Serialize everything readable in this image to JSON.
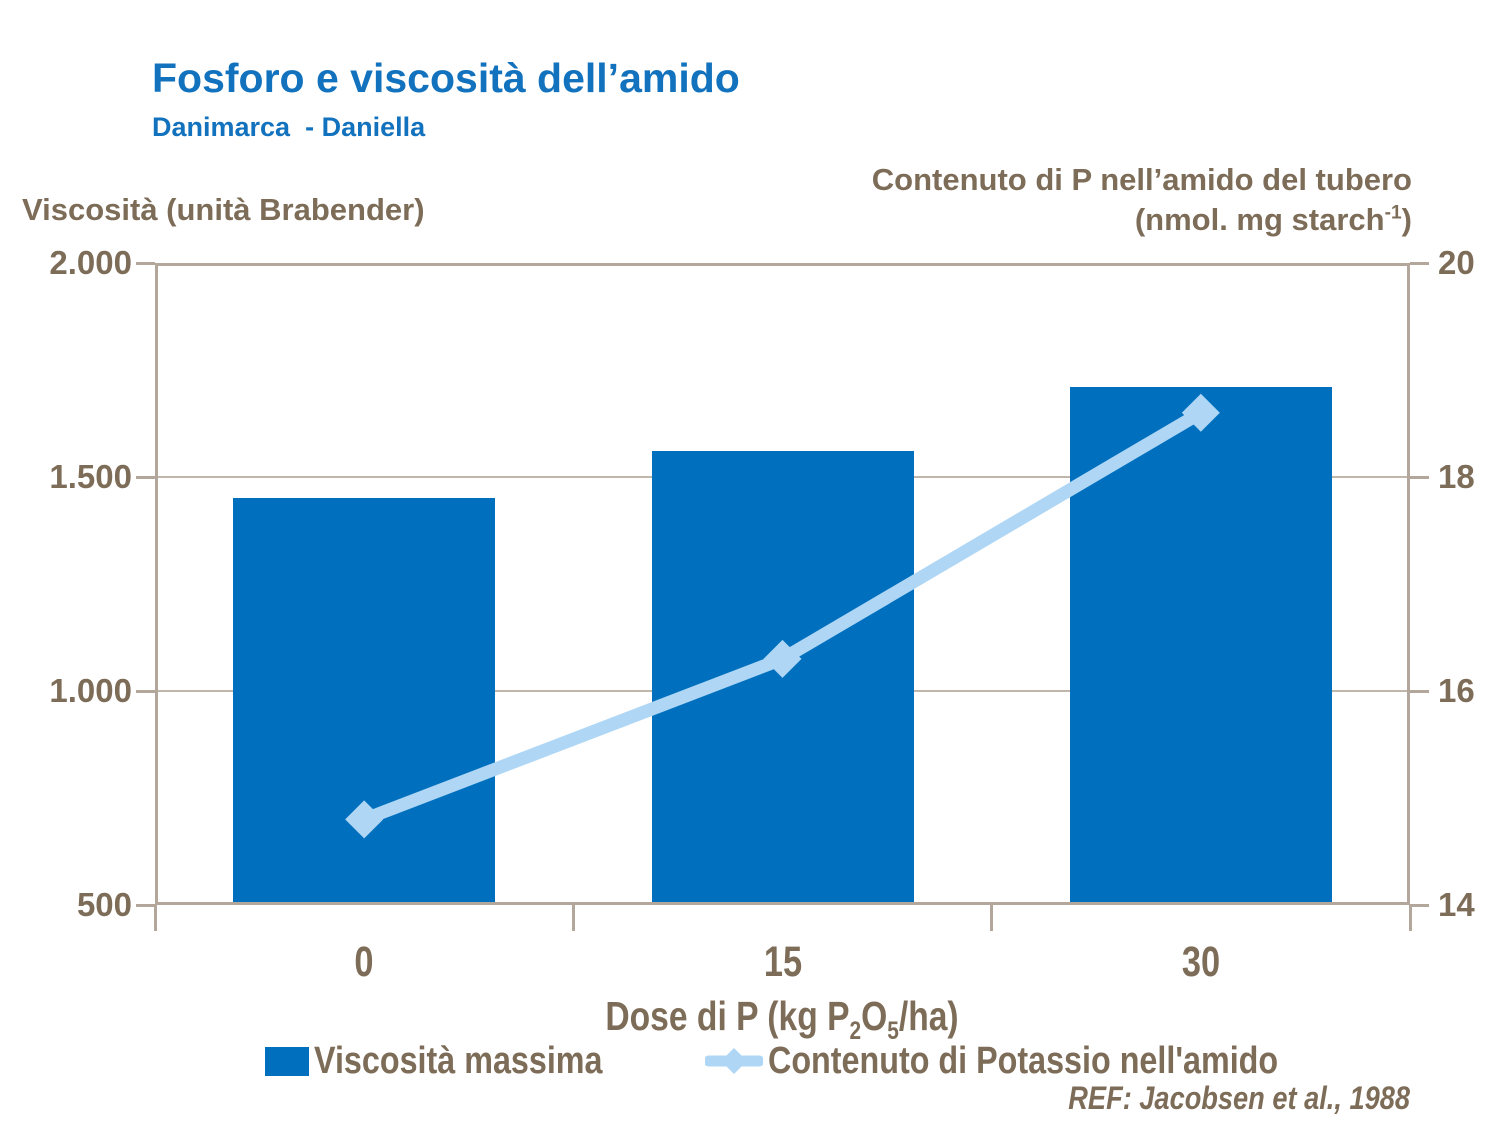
{
  "header": {
    "title": "Fosforo e viscosità dell’amido",
    "subtitle": "Danimarca  - Daniella"
  },
  "colors": {
    "title_blue": "#1272BD",
    "bar_blue": "#0070BE",
    "line_blue": "#AFD7F5",
    "text_brown": "#7D6D58",
    "frame_taupe": "#B2A79A",
    "gridline": "#C0B7AB",
    "background": "#FFFFFF"
  },
  "chart_data": {
    "type": "combo-bar-line",
    "categories": [
      "0",
      "15",
      "30"
    ],
    "series": [
      {
        "name": "Viscosità massima",
        "type": "bar",
        "axis": "left",
        "values": [
          1450,
          1560,
          1710
        ],
        "color": "#0070BE"
      },
      {
        "name": "Contenuto di Potassio nell'amido",
        "type": "line",
        "axis": "right",
        "marker": "diamond",
        "values": [
          14.8,
          16.3,
          18.6
        ],
        "color": "#AFD7F5"
      }
    ],
    "left_axis": {
      "title": "Viscosità (unità Brabender)",
      "min": 500,
      "max": 2000,
      "ticks": [
        "2.000",
        "1.500",
        "1.000",
        "500"
      ],
      "tick_values": [
        2000,
        1500,
        1000,
        500
      ],
      "grid_values": [
        1500,
        1000
      ]
    },
    "right_axis": {
      "title_line1": "Contenuto di P nell’amido del tubero",
      "title_line2": "(nmol. mg starch-1)",
      "title_line2_parts": {
        "p1": "(nmol. mg starch",
        "sup": "-1",
        "p2": ")"
      },
      "min": 14,
      "max": 20,
      "ticks": [
        "20",
        "18",
        "16",
        "14"
      ],
      "tick_values": [
        20,
        18,
        16,
        14
      ]
    },
    "x_axis": {
      "title": "Dose di P (kg P2O5/ha)",
      "title_parts": {
        "p1": "Dose di P (kg P",
        "sub1": "2",
        "p2": "O",
        "sub2": "5",
        "p3": "/ha)"
      },
      "labels": [
        "0",
        "15",
        "30"
      ]
    },
    "grid": "horizontal",
    "legend_position": "bottom"
  },
  "footer": {
    "ref": "REF: Jacobsen et al., 1988"
  }
}
